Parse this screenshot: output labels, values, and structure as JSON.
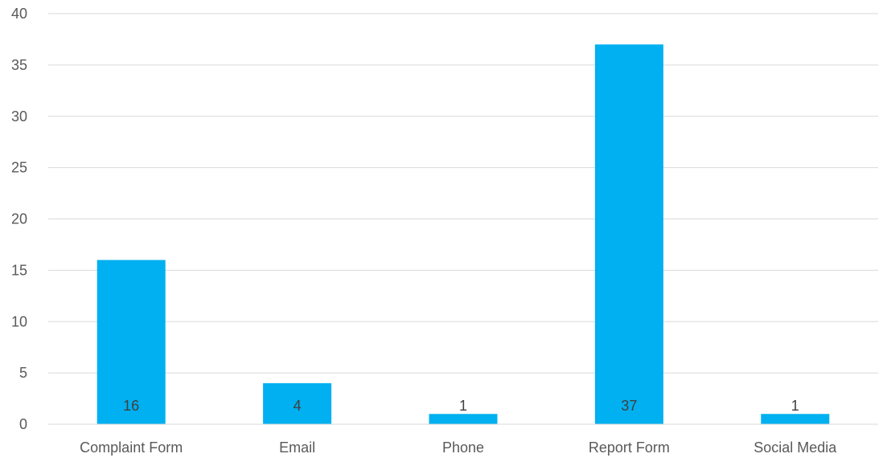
{
  "chart_data": {
    "type": "bar",
    "categories": [
      "Complaint Form",
      "Email",
      "Phone",
      "Report Form",
      "Social Media"
    ],
    "values": [
      16,
      4,
      1,
      37,
      1
    ],
    "data_labels": [
      "16",
      "4",
      "1",
      "37",
      "1"
    ],
    "ylim": [
      0,
      40
    ],
    "yticks": [
      0,
      5,
      10,
      15,
      20,
      25,
      30,
      35,
      40
    ],
    "grid": true,
    "bar_color": "#00b0f0"
  }
}
